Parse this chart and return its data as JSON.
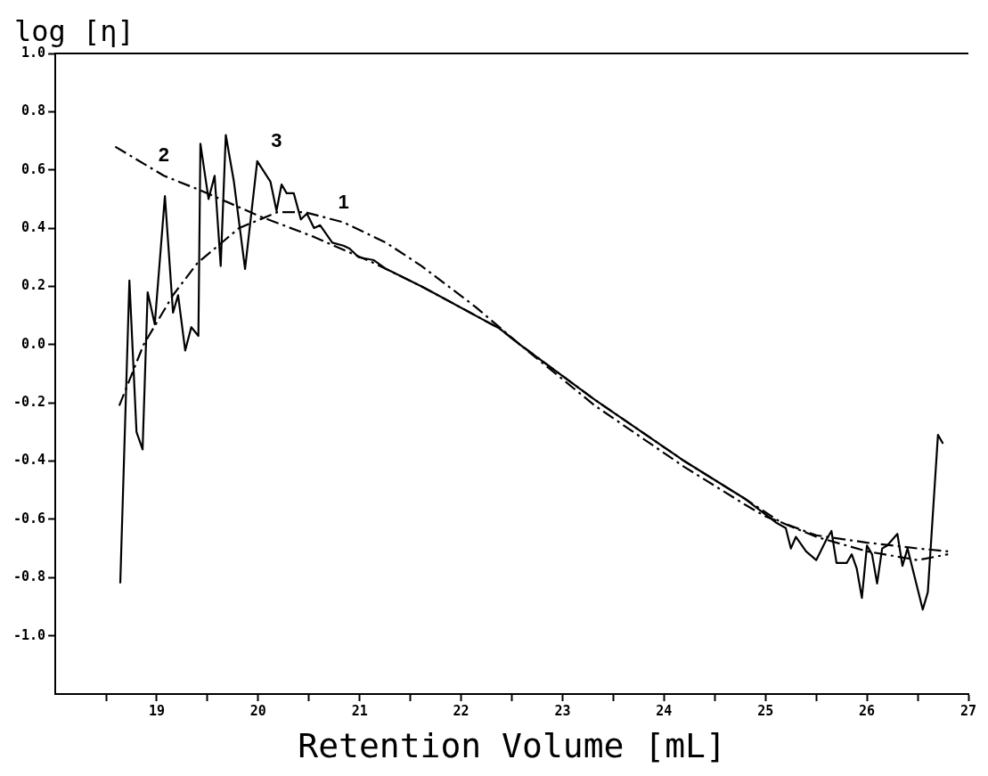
{
  "chart_data": {
    "type": "line",
    "xlabel": "Retention Volume [mL]",
    "ylabel": "log [η]",
    "xlim": [
      18,
      27
    ],
    "ylim": [
      -1.2,
      1.0
    ],
    "xticks": [
      {
        "value": 18.5,
        "label": null
      },
      19,
      {
        "value": 19.5,
        "label": null
      },
      20,
      {
        "value": 20.5,
        "label": null
      },
      21,
      {
        "value": 21.5,
        "label": null
      },
      22,
      {
        "value": 22.5,
        "label": null
      },
      23,
      {
        "value": 23.5,
        "label": null
      },
      24,
      {
        "value": 24.5,
        "label": null
      },
      25,
      {
        "value": 25.5,
        "label": null
      },
      26,
      {
        "value": 26.5,
        "label": null
      },
      27
    ],
    "yticks": [
      {
        "value": 1.0,
        "label": "1.0"
      },
      {
        "value": 0.8,
        "label": "0.8"
      },
      {
        "value": 0.6,
        "label": "0.6"
      },
      {
        "value": 0.4,
        "label": "0.4"
      },
      {
        "value": 0.2,
        "label": "0.2"
      },
      {
        "value": 0,
        "label": "0.0"
      },
      {
        "value": -0.2,
        "label": "-0.2"
      },
      {
        "value": -0.4,
        "label": "-0.4"
      },
      {
        "value": -0.6,
        "label": "-0.6"
      },
      {
        "value": -0.8,
        "label": "-0.8"
      },
      {
        "value": -1.0,
        "label": "-1.0"
      }
    ],
    "grid": false,
    "legend": false,
    "marker": "none",
    "series": [
      {
        "name": "1",
        "color": "#000000",
        "line_style": "dashed",
        "x": [
          18.63,
          18.87,
          19.16,
          19.4,
          19.81,
          20.19,
          20.46,
          20.84,
          21.26,
          21.61,
          22.14,
          22.58,
          23.32,
          24.2,
          24.8,
          25.0,
          25.5,
          26.0,
          26.5,
          26.8
        ],
        "values": [
          -0.21,
          0.0,
          0.17,
          0.28,
          0.4,
          0.455,
          0.455,
          0.42,
          0.35,
          0.27,
          0.13,
          0.0,
          -0.21,
          -0.42,
          -0.55,
          -0.59,
          -0.655,
          -0.68,
          -0.7,
          -0.71
        ]
      },
      {
        "name": "2",
        "color": "#000000",
        "line_style": "dashed",
        "x": [
          18.59,
          19.07,
          19.43,
          20.02,
          20.55,
          21.14,
          21.61,
          22.38,
          22.58,
          23.32,
          24.2,
          24.8,
          25.15,
          25.5,
          26.0,
          26.5,
          26.8
        ],
        "values": [
          0.68,
          0.58,
          0.53,
          0.44,
          0.37,
          0.28,
          0.2,
          0.055,
          0.0,
          -0.19,
          -0.4,
          -0.53,
          -0.61,
          -0.66,
          -0.71,
          -0.74,
          -0.72
        ]
      },
      {
        "name": "3",
        "color": "#000000",
        "line_style": "solid",
        "x": [
          18.64,
          18.73,
          18.8,
          18.86,
          18.91,
          18.98,
          19.08,
          19.16,
          19.21,
          19.28,
          19.34,
          19.41,
          19.43,
          19.51,
          19.57,
          19.63,
          19.68,
          19.76,
          19.87,
          19.99,
          20.12,
          20.18,
          20.23,
          20.28,
          20.35,
          20.42,
          20.48,
          20.55,
          20.61,
          20.73,
          20.84,
          20.9,
          20.99,
          21.14,
          21.26,
          21.61,
          22.38,
          22.58,
          23.32,
          24.2,
          24.8,
          25.1,
          25.2,
          25.25,
          25.3,
          25.4,
          25.5,
          25.6,
          25.65,
          25.7,
          25.8,
          25.85,
          25.9,
          25.95,
          26.0,
          26.05,
          26.1,
          26.15,
          26.2,
          26.3,
          26.35,
          26.4,
          26.5,
          26.55,
          26.6,
          26.7,
          26.75
        ],
        "values": [
          -0.82,
          0.22,
          -0.3,
          -0.36,
          0.18,
          0.07,
          0.51,
          0.11,
          0.17,
          -0.02,
          0.06,
          0.03,
          0.69,
          0.5,
          0.58,
          0.27,
          0.72,
          0.56,
          0.26,
          0.63,
          0.56,
          0.46,
          0.55,
          0.52,
          0.52,
          0.43,
          0.45,
          0.4,
          0.41,
          0.35,
          0.34,
          0.33,
          0.3,
          0.29,
          0.26,
          0.2,
          0.055,
          0.0,
          -0.19,
          -0.4,
          -0.53,
          -0.61,
          -0.63,
          -0.7,
          -0.66,
          -0.71,
          -0.74,
          -0.67,
          -0.64,
          -0.75,
          -0.75,
          -0.72,
          -0.77,
          -0.87,
          -0.69,
          -0.72,
          -0.82,
          -0.7,
          -0.69,
          -0.65,
          -0.76,
          -0.7,
          -0.84,
          -0.91,
          -0.85,
          -0.31,
          -0.34
        ]
      }
    ]
  }
}
